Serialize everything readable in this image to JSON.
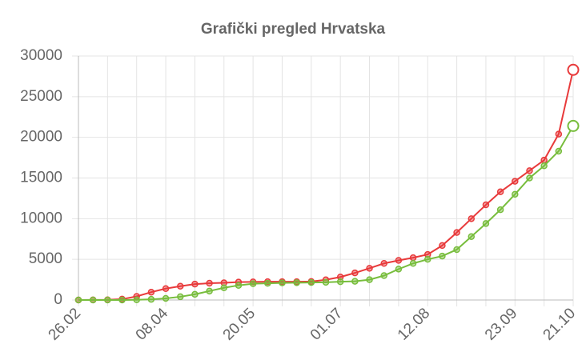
{
  "chart_data": {
    "type": "line",
    "title": "Grafički pregled Hrvatska",
    "categories": [
      "26.02",
      null,
      null,
      null,
      null,
      null,
      "08.04",
      null,
      null,
      null,
      null,
      null,
      "20.05",
      null,
      null,
      null,
      null,
      null,
      "01.07",
      null,
      null,
      null,
      null,
      null,
      "12.08",
      null,
      null,
      null,
      null,
      null,
      "23.09",
      null,
      null,
      null,
      "21.10"
    ],
    "series": [
      {
        "color": "#e83a3b",
        "values": [
          1,
          10,
          20,
          105,
          442,
          963,
          1400,
          1700,
          1950,
          2060,
          2110,
          2200,
          2230,
          2245,
          2250,
          2250,
          2270,
          2480,
          2830,
          3330,
          3900,
          4500,
          4870,
          5200,
          5600,
          6700,
          8300,
          10000,
          11700,
          13300,
          14600,
          15900,
          17200,
          20400,
          28300
        ]
      },
      {
        "color": "#77bd3c",
        "values": [
          0,
          0,
          0,
          5,
          30,
          80,
          200,
          400,
          700,
          1100,
          1500,
          1800,
          2000,
          2050,
          2100,
          2130,
          2150,
          2180,
          2250,
          2300,
          2500,
          3000,
          3800,
          4500,
          5000,
          5400,
          6200,
          7800,
          9400,
          11100,
          13000,
          15000,
          16500,
          18300,
          21400
        ]
      }
    ],
    "ylim": [
      0,
      30000
    ],
    "yticks": [
      0,
      5000,
      10000,
      15000,
      20000,
      25000,
      30000
    ],
    "grid": true
  }
}
